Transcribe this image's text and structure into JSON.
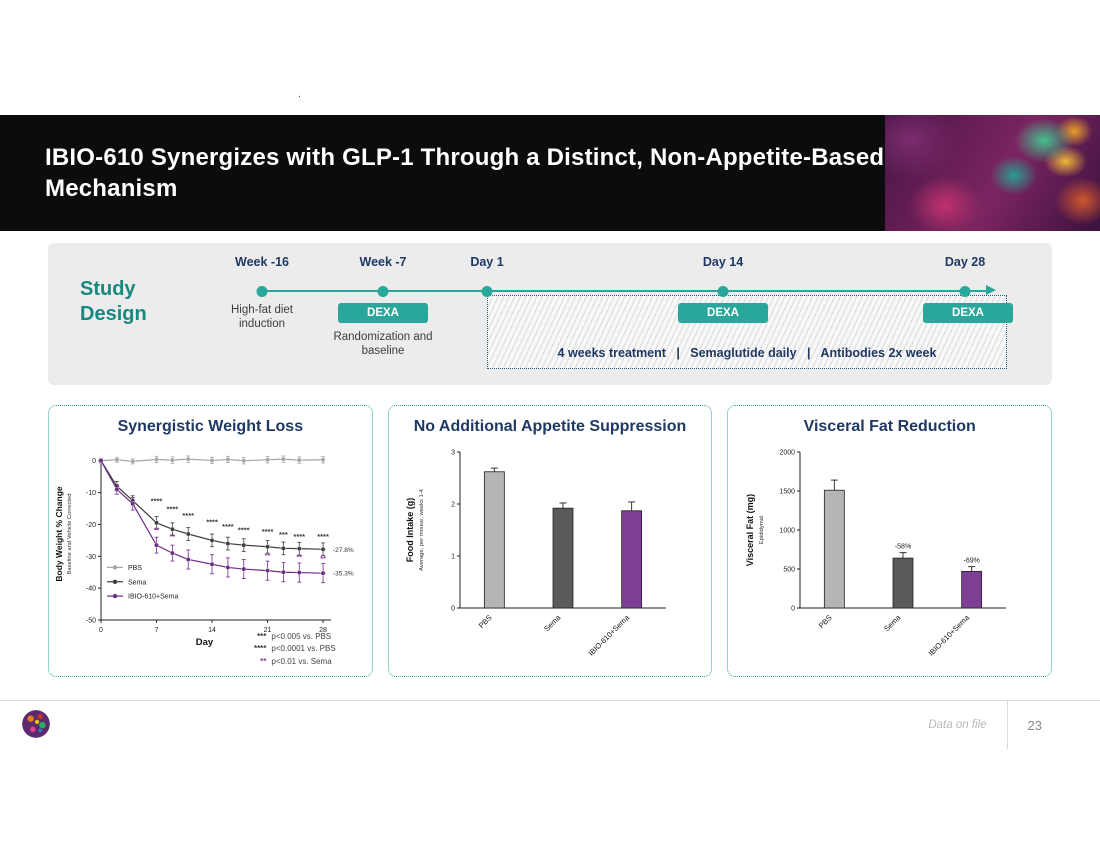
{
  "artifact_dot": ".",
  "header": {
    "title": "IBIO-610 Synergizes with GLP-1 Through a Distinct, Non-Appetite-Based Mechanism"
  },
  "study_design": {
    "label": "Study Design",
    "timeline": [
      {
        "label": "Week -16",
        "sub": "High-fat diet induction"
      },
      {
        "label": "Week -7",
        "badge": "DEXA",
        "sub": "Randomization and baseline"
      },
      {
        "label": "Day 1"
      },
      {
        "label": "Day 14",
        "badge": "DEXA"
      },
      {
        "label": "Day 28",
        "badge": "DEXA"
      }
    ],
    "treatment_note": "4 weeks treatment   |   Semaglutide daily   |   Antibodies 2x week"
  },
  "panels": {
    "weight_loss": {
      "title": "Synergistic Weight Loss"
    },
    "food_intake": {
      "title": "No Additional Appetite Suppression"
    },
    "visceral_fat": {
      "title": "Visceral Fat Reduction"
    }
  },
  "stats_notes": [
    {
      "stars": "***",
      "text": "p<0.005 vs. PBS",
      "color": "#3a3a3a"
    },
    {
      "stars": "****",
      "text": "p<0.0001 vs. PBS",
      "color": "#3a3a3a"
    },
    {
      "stars": "**",
      "text": "p<0.01 vs. Sema",
      "color": "#8e3f97"
    }
  ],
  "footer": {
    "note": "Data on file",
    "page": "23"
  },
  "chart_data": [
    {
      "type": "line",
      "title": "Synergistic Weight Loss",
      "xlabel": "Day",
      "ylabel": "Body Weight % Change",
      "ylabel_sub": "Baseline and Vehicle Corrected",
      "xlim": [
        0,
        29
      ],
      "ylim": [
        -50,
        4
      ],
      "xticks": [
        0,
        7,
        14,
        21,
        28
      ],
      "yticks": [
        0,
        -10,
        -20,
        -30,
        -40,
        -50
      ],
      "x": [
        0,
        2,
        4,
        7,
        9,
        11,
        14,
        16,
        18,
        21,
        23,
        25,
        28
      ],
      "series": [
        {
          "name": "PBS",
          "color": "#a6a6a6",
          "values": [
            0,
            0.3,
            -0.2,
            0.4,
            0.2,
            0.5,
            0.1,
            0.4,
            0,
            0.3,
            0.5,
            0.2,
            0.3
          ],
          "errors": [
            0.8,
            0.8,
            0.8,
            1,
            1,
            1,
            1,
            1,
            1,
            1,
            1,
            1,
            1
          ]
        },
        {
          "name": "Sema",
          "color": "#3f3f3f",
          "values": [
            0,
            -8,
            -12.5,
            -19.5,
            -21.5,
            -23,
            -25,
            -26,
            -26.5,
            -27,
            -27.5,
            -27.6,
            -27.8
          ],
          "errors": [
            0.5,
            1.5,
            1.5,
            2,
            2,
            2,
            2,
            2,
            2,
            2,
            2,
            2,
            2
          ]
        },
        {
          "name": "IBIO-610+Sema",
          "color": "#6b2d83",
          "values": [
            0,
            -9,
            -13.5,
            -26.5,
            -29,
            -31,
            -32.5,
            -33.5,
            -34,
            -34.5,
            -35,
            -35.1,
            -35.3
          ],
          "errors": [
            0.5,
            1.5,
            2,
            2.5,
            2.5,
            3,
            3,
            3,
            3,
            3,
            3,
            3,
            3
          ]
        }
      ],
      "end_labels": [
        {
          "y": -27.8,
          "text": "-27.8%"
        },
        {
          "y": -35.3,
          "text": "-35.3%"
        }
      ],
      "annotations": [
        {
          "x": 7,
          "y": -13.5,
          "text": "****",
          "color": "#3a3a3a"
        },
        {
          "x": 7,
          "y": -22.5,
          "text": "**",
          "color": "#8e3f97"
        },
        {
          "x": 9,
          "y": -16,
          "text": "****",
          "color": "#3a3a3a"
        },
        {
          "x": 9,
          "y": -24.5,
          "text": "**",
          "color": "#8e3f97"
        },
        {
          "x": 11,
          "y": -18,
          "text": "****",
          "color": "#3a3a3a"
        },
        {
          "x": 14,
          "y": -20,
          "text": "****",
          "color": "#3a3a3a"
        },
        {
          "x": 16,
          "y": -21.5,
          "text": "****",
          "color": "#3a3a3a"
        },
        {
          "x": 18,
          "y": -22.5,
          "text": "****",
          "color": "#3a3a3a"
        },
        {
          "x": 21,
          "y": -23,
          "text": "****",
          "color": "#3a3a3a"
        },
        {
          "x": 21,
          "y": -30.5,
          "text": "**",
          "color": "#8e3f97"
        },
        {
          "x": 23,
          "y": -24,
          "text": "***",
          "color": "#3a3a3a"
        },
        {
          "x": 25,
          "y": -24.5,
          "text": "****",
          "color": "#3a3a3a"
        },
        {
          "x": 25,
          "y": -31,
          "text": "**",
          "color": "#8e3f97"
        },
        {
          "x": 28,
          "y": -24.5,
          "text": "****",
          "color": "#3a3a3a"
        },
        {
          "x": 28,
          "y": -31.5,
          "text": "**",
          "color": "#8e3f97"
        }
      ]
    },
    {
      "type": "bar",
      "title": "No Additional Appetite Suppression",
      "categories": [
        "PBS",
        "Sema",
        "IBIO-610+Sema"
      ],
      "values": [
        2.62,
        1.92,
        1.87
      ],
      "errors": [
        0.07,
        0.1,
        0.17
      ],
      "colors": [
        "#b5b5b5",
        "#5a5a5a",
        "#7d3f93"
      ],
      "bar_labels": [
        "",
        "",
        ""
      ],
      "ylabel": "Food Intake (g)",
      "ylabel_sub": "Average, per mouse, weeks 1-4",
      "ylim": [
        0,
        3
      ],
      "yticks": [
        0,
        1,
        2,
        3
      ]
    },
    {
      "type": "bar",
      "title": "Visceral Fat Reduction",
      "categories": [
        "PBS",
        "Sema",
        "IBIO-610+Sema"
      ],
      "values": [
        1510,
        640,
        470
      ],
      "errors": [
        130,
        70,
        60
      ],
      "colors": [
        "#b5b5b5",
        "#5a5a5a",
        "#7d3f93"
      ],
      "bar_labels": [
        "",
        "-58%",
        "-69%"
      ],
      "ylabel": "Visceral Fat (mg)",
      "ylabel_sub": "Epididymal",
      "ylim": [
        0,
        2000
      ],
      "yticks": [
        0,
        500,
        1000,
        1500,
        2000
      ]
    }
  ]
}
